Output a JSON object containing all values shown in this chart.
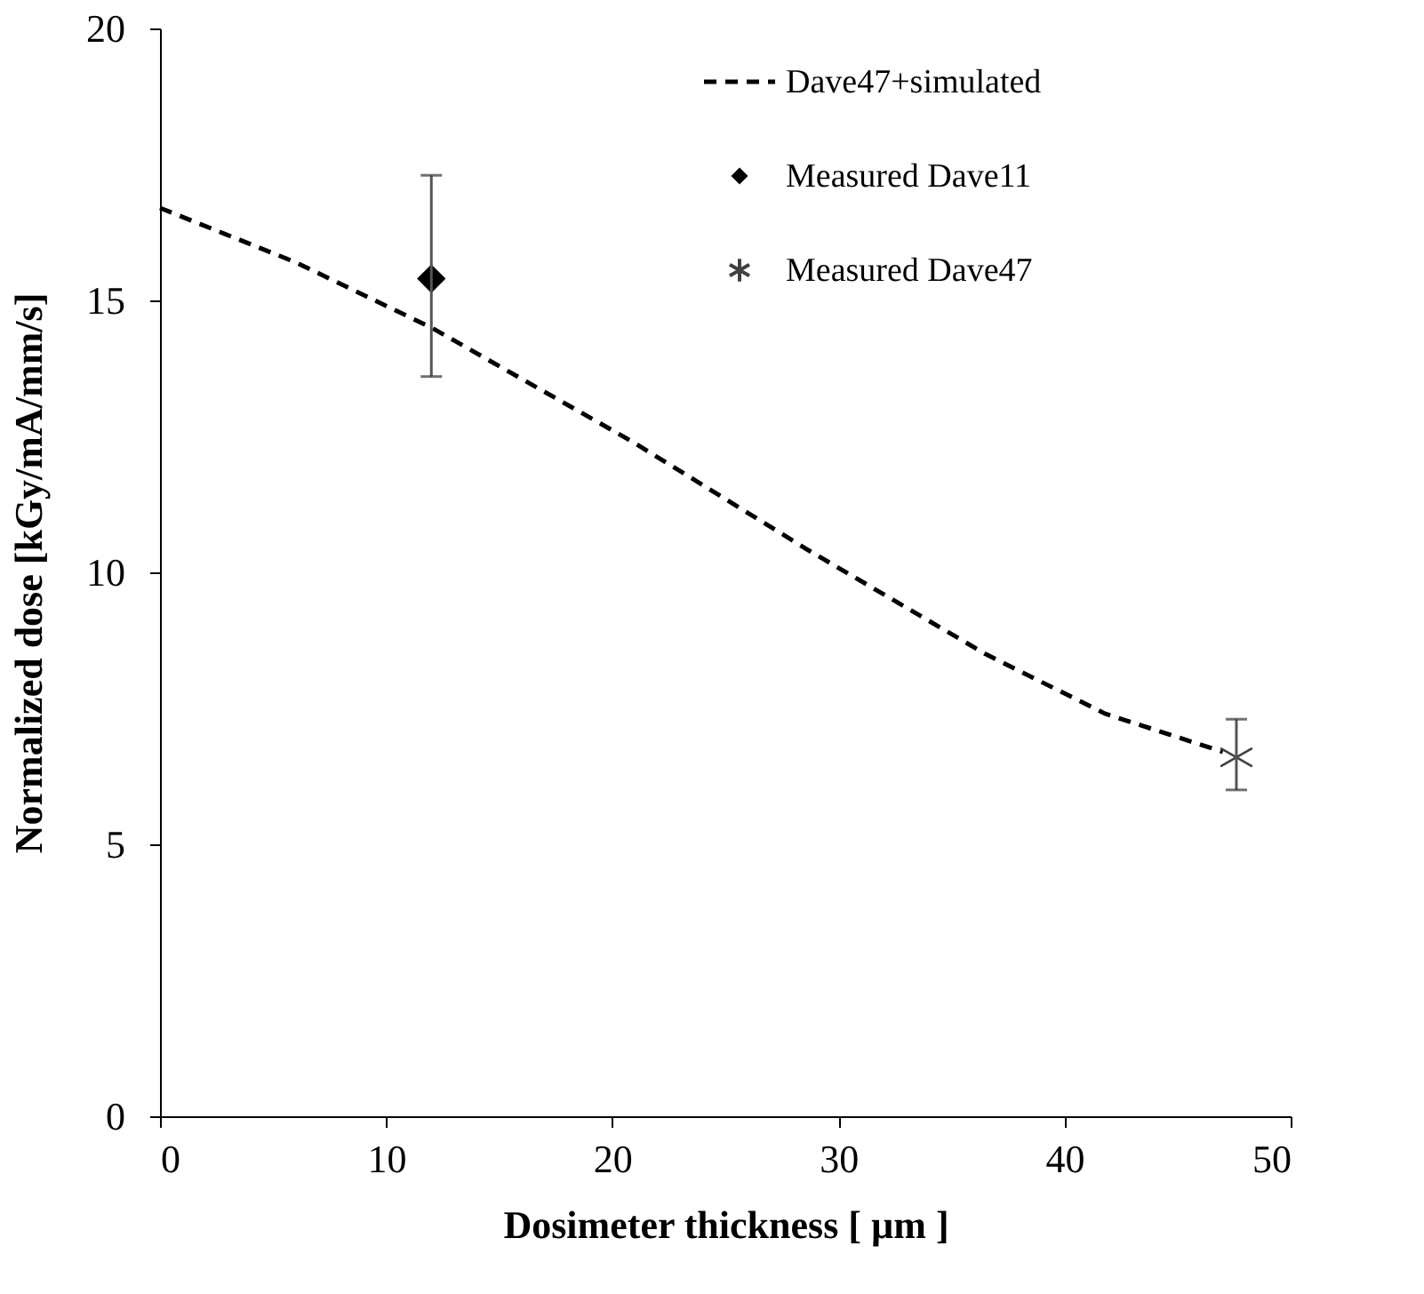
{
  "chart_data": {
    "type": "line",
    "xlabel": "Dosimeter thickness [ µm ]",
    "ylabel": "Normalized dose [kGy/mA/mm/s]",
    "xlim": [
      0,
      50
    ],
    "xticks": [
      0,
      10,
      20,
      30,
      40,
      50
    ],
    "ylim": [
      0,
      20
    ],
    "yticks": [
      0,
      5,
      10,
      15,
      20
    ],
    "grid": false,
    "legend": "top right",
    "series": [
      {
        "name": "Dave47+simulated",
        "color": "#000000",
        "line_style": "dashed",
        "marker": "none",
        "x": [
          0,
          6,
          12,
          20.9,
          24.8,
          28.7,
          36.5,
          41.8,
          47
        ],
        "values": [
          16.7,
          15.7,
          14.5,
          12.4,
          11.4,
          10.4,
          8.5,
          7.4,
          6.7
        ]
      },
      {
        "name": "Measured Dave11",
        "type": "scatter",
        "color": "#000000",
        "marker": "diamond",
        "x": [
          12
        ],
        "values": [
          15.4
        ],
        "errors": [
          [
            13.6,
            17.3
          ]
        ]
      },
      {
        "name": "Measured Dave47",
        "type": "scatter",
        "color": "#404040",
        "marker": "cross",
        "x": [
          47.6
        ],
        "values": [
          6.6
        ],
        "errors": [
          [
            6.0,
            7.3
          ]
        ]
      }
    ]
  }
}
